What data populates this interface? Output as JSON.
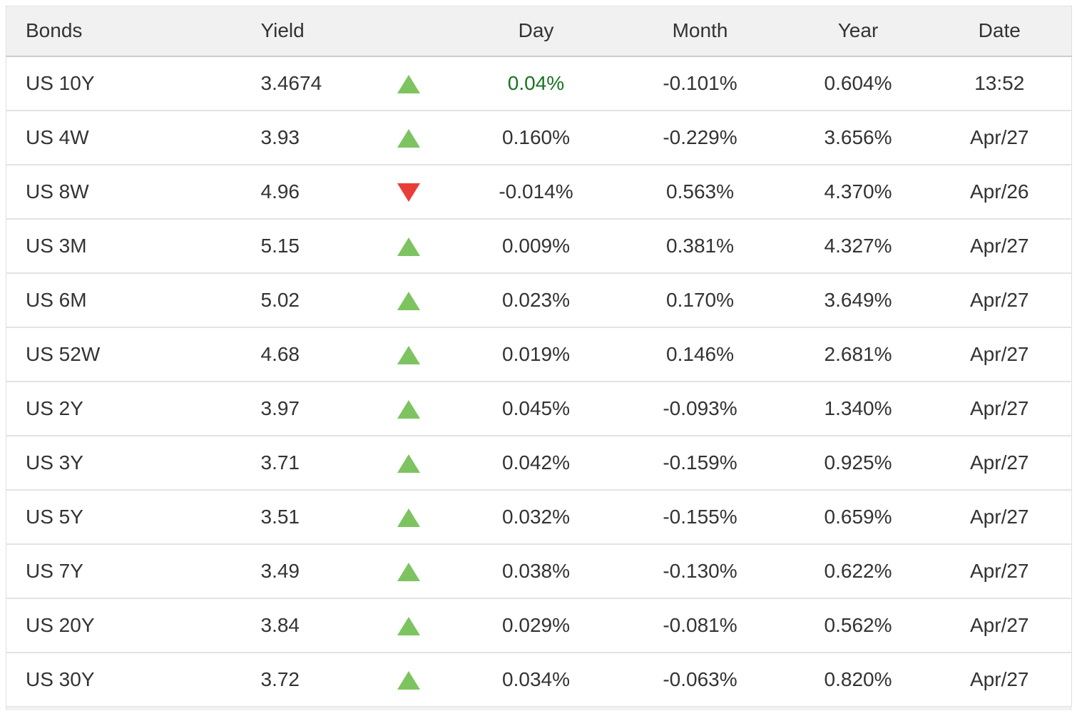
{
  "table": {
    "columns": {
      "bonds": "Bonds",
      "yield": "Yield",
      "day": "Day",
      "month": "Month",
      "year": "Year",
      "date": "Date"
    },
    "colors": {
      "up_triangle": "#7dc460",
      "down_triangle": "#e83e38",
      "day_highlight_green": "#1a7323",
      "header_background": "#f1f1f1",
      "text": "#333333"
    },
    "rows": [
      {
        "bond": "US 10Y",
        "yield": "3.4674",
        "direction": "up",
        "day": "0.04%",
        "day_green": true,
        "month": "-0.101%",
        "year": "0.604%",
        "date": "13:52"
      },
      {
        "bond": "US 4W",
        "yield": "3.93",
        "direction": "up",
        "day": "0.160%",
        "day_green": false,
        "month": "-0.229%",
        "year": "3.656%",
        "date": "Apr/27"
      },
      {
        "bond": "US 8W",
        "yield": "4.96",
        "direction": "down",
        "day": "-0.014%",
        "day_green": false,
        "month": "0.563%",
        "year": "4.370%",
        "date": "Apr/26"
      },
      {
        "bond": "US 3M",
        "yield": "5.15",
        "direction": "up",
        "day": "0.009%",
        "day_green": false,
        "month": "0.381%",
        "year": "4.327%",
        "date": "Apr/27"
      },
      {
        "bond": "US 6M",
        "yield": "5.02",
        "direction": "up",
        "day": "0.023%",
        "day_green": false,
        "month": "0.170%",
        "year": "3.649%",
        "date": "Apr/27"
      },
      {
        "bond": "US 52W",
        "yield": "4.68",
        "direction": "up",
        "day": "0.019%",
        "day_green": false,
        "month": "0.146%",
        "year": "2.681%",
        "date": "Apr/27"
      },
      {
        "bond": "US 2Y",
        "yield": "3.97",
        "direction": "up",
        "day": "0.045%",
        "day_green": false,
        "month": "-0.093%",
        "year": "1.340%",
        "date": "Apr/27"
      },
      {
        "bond": "US 3Y",
        "yield": "3.71",
        "direction": "up",
        "day": "0.042%",
        "day_green": false,
        "month": "-0.159%",
        "year": "0.925%",
        "date": "Apr/27"
      },
      {
        "bond": "US 5Y",
        "yield": "3.51",
        "direction": "up",
        "day": "0.032%",
        "day_green": false,
        "month": "-0.155%",
        "year": "0.659%",
        "date": "Apr/27"
      },
      {
        "bond": "US 7Y",
        "yield": "3.49",
        "direction": "up",
        "day": "0.038%",
        "day_green": false,
        "month": "-0.130%",
        "year": "0.622%",
        "date": "Apr/27"
      },
      {
        "bond": "US 20Y",
        "yield": "3.84",
        "direction": "up",
        "day": "0.029%",
        "day_green": false,
        "month": "-0.081%",
        "year": "0.562%",
        "date": "Apr/27"
      },
      {
        "bond": "US 30Y",
        "yield": "3.72",
        "direction": "up",
        "day": "0.034%",
        "day_green": false,
        "month": "-0.063%",
        "year": "0.820%",
        "date": "Apr/27"
      }
    ]
  }
}
